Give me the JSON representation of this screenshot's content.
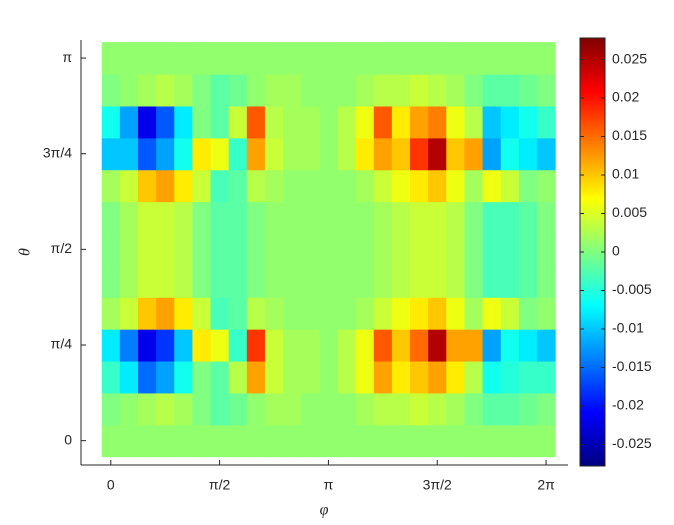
{
  "chart_data": {
    "type": "heatmap",
    "xlabel": "φ",
    "ylabel": "θ",
    "colormap": "jet",
    "x": [
      0,
      0.2618,
      0.5236,
      0.7854,
      1.0472,
      1.309,
      1.5708,
      1.8326,
      2.0944,
      2.3562,
      2.618,
      2.8798,
      3.1416,
      3.4034,
      3.6652,
      3.927,
      4.1888,
      4.4506,
      4.7124,
      4.9742,
      5.236,
      5.4978,
      5.7596,
      6.0214,
      6.2832
    ],
    "y": [
      0,
      0.2618,
      0.5236,
      0.7854,
      1.0472,
      1.309,
      1.5708,
      1.8326,
      2.0944,
      2.3562,
      2.618,
      2.8798,
      3.1416
    ],
    "z": [
      [
        0.001,
        0.001,
        0.001,
        0.001,
        0.001,
        0.001,
        0.001,
        0.001,
        0.001,
        0.001,
        0.001,
        0.001,
        0.001,
        0.001,
        0.001,
        0.001,
        0.001,
        0.001,
        0.001,
        0.001,
        0.001,
        0.001,
        0.001,
        0.001,
        0.001
      ],
      [
        0,
        0.001,
        0.002,
        0.003,
        0.002,
        0,
        -0.002,
        -0.001,
        0.001,
        0.002,
        0.002,
        0.001,
        0.001,
        0.001,
        0.002,
        0.003,
        0.003,
        0.004,
        0.003,
        0.002,
        0,
        -0.002,
        -0.002,
        -0.001,
        0
      ],
      [
        -0.004,
        -0.008,
        -0.015,
        -0.012,
        -0.006,
        0,
        -0.002,
        0.003,
        0.012,
        0.004,
        0.002,
        0.002,
        0.001,
        0.003,
        0.006,
        0.012,
        0.008,
        0.01,
        0.012,
        0.008,
        0.003,
        -0.006,
        -0.005,
        -0.004,
        -0.004
      ],
      [
        -0.008,
        -0.014,
        -0.022,
        -0.018,
        -0.01,
        0.008,
        0.006,
        -0.004,
        0.018,
        0.004,
        0.002,
        0.002,
        0.001,
        0.003,
        0.006,
        0.016,
        0.01,
        0.015,
        0.025,
        0.012,
        0.012,
        -0.012,
        -0.006,
        -0.008,
        -0.01
      ],
      [
        0.002,
        0.004,
        0.01,
        0.012,
        0.008,
        0.004,
        -0.003,
        -0.002,
        0.003,
        0.002,
        0.001,
        0.001,
        0.001,
        0.001,
        0.002,
        0.004,
        0.006,
        0.008,
        0.01,
        0.006,
        0.002,
        0.006,
        0.004,
        0,
        0.001
      ],
      [
        0,
        0.002,
        0.004,
        0.004,
        0.003,
        0,
        -0.002,
        -0.002,
        0,
        0.001,
        0.001,
        0.001,
        0.001,
        0.001,
        0.001,
        0.002,
        0.003,
        0.004,
        0.004,
        0.003,
        0,
        -0.003,
        -0.003,
        -0.002,
        0
      ],
      [
        0,
        0.002,
        0.004,
        0.004,
        0.003,
        0,
        -0.002,
        -0.002,
        0,
        0.001,
        0.001,
        0.001,
        0.001,
        0.001,
        0.001,
        0.002,
        0.003,
        0.004,
        0.004,
        0.003,
        0,
        -0.003,
        -0.003,
        -0.002,
        0
      ],
      [
        0,
        0.002,
        0.004,
        0.004,
        0.003,
        0,
        -0.002,
        -0.002,
        0,
        0.001,
        0.001,
        0.001,
        0.001,
        0.001,
        0.001,
        0.002,
        0.003,
        0.004,
        0.004,
        0.003,
        0,
        -0.003,
        -0.003,
        -0.002,
        0
      ],
      [
        0.002,
        0.004,
        0.01,
        0.012,
        0.008,
        0.004,
        -0.003,
        -0.002,
        0.003,
        0.002,
        0.001,
        0.001,
        0.001,
        0.001,
        0.002,
        0.004,
        0.006,
        0.008,
        0.01,
        0.006,
        0.002,
        0.006,
        0.004,
        0,
        0.001
      ],
      [
        -0.01,
        -0.01,
        -0.016,
        -0.012,
        -0.006,
        0.008,
        0.006,
        -0.004,
        0.012,
        0.004,
        0.002,
        0.002,
        0.001,
        0.003,
        0.008,
        0.012,
        0.01,
        0.018,
        0.025,
        0.01,
        0.012,
        -0.012,
        -0.006,
        -0.008,
        -0.01
      ],
      [
        -0.006,
        -0.012,
        -0.022,
        -0.016,
        -0.008,
        0,
        -0.002,
        0.004,
        0.016,
        0.003,
        0.002,
        0.002,
        0.001,
        0.003,
        0.006,
        0.016,
        0.008,
        0.012,
        0.014,
        0.006,
        0.003,
        -0.01,
        -0.008,
        -0.006,
        -0.004
      ],
      [
        0,
        0.001,
        0.002,
        0.003,
        0.002,
        0,
        -0.002,
        -0.001,
        0.001,
        0.002,
        0.002,
        0.001,
        0.001,
        0.001,
        0.002,
        0.003,
        0.003,
        0.004,
        0.003,
        0.002,
        0,
        -0.002,
        -0.002,
        -0.001,
        0
      ],
      [
        0.001,
        0.001,
        0.001,
        0.001,
        0.001,
        0.001,
        0.001,
        0.001,
        0.001,
        0.001,
        0.001,
        0.001,
        0.001,
        0.001,
        0.001,
        0.001,
        0.001,
        0.001,
        0.001,
        0.001,
        0.001,
        0.001,
        0.001,
        0.001,
        0.001
      ]
    ],
    "xlim": [
      -0.43,
      6.6
    ],
    "ylim": [
      -0.2,
      3.29
    ],
    "xticks": [
      0,
      {
        "value": 1.5708,
        "label": "π/2"
      },
      {
        "value": 3.1416,
        "label": "π"
      },
      {
        "value": 4.7124,
        "label": "3π/2"
      },
      {
        "value": 6.2832,
        "label": "2π"
      }
    ],
    "yticks": [
      0,
      {
        "value": 0.7854,
        "label": "π/4"
      },
      {
        "value": 1.5708,
        "label": "π/2"
      },
      {
        "value": 2.3562,
        "label": "3π/4"
      },
      {
        "value": 3.1416,
        "label": "π"
      }
    ],
    "clim": [
      -0.0278,
      0.0278
    ],
    "cticks": [
      -0.025,
      -0.02,
      -0.015,
      -0.01,
      -0.005,
      0,
      0.005,
      0.01,
      0.015,
      0.02,
      0.025
    ]
  }
}
